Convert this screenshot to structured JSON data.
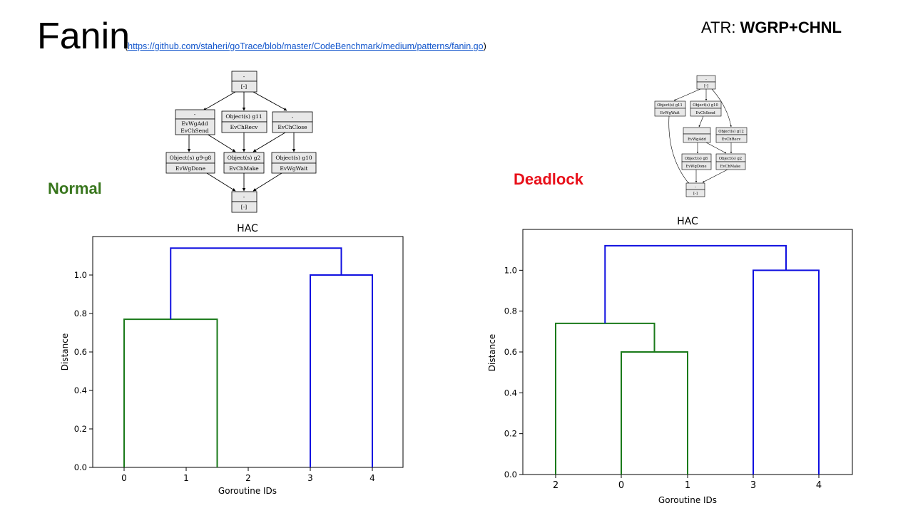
{
  "header": {
    "title": "Fanin",
    "link_open": "(",
    "link_text": "https://github.com/staheri/goTrace/blob/master/CodeBenchmark/medium/patterns/fanin.go",
    "link_close": ")",
    "atr_prefix": "ATR: ",
    "atr_value": "WGRP+CHNL"
  },
  "labels": {
    "normal": "Normal",
    "deadlock": "Deadlock"
  },
  "graph_normal": {
    "nodes": [
      {
        "id": "top",
        "l1": "-",
        "l2": "[-]"
      },
      {
        "id": "a",
        "l1": "-",
        "l2": "EvWgAdd",
        "l3": "EvChSend"
      },
      {
        "id": "b",
        "l1": "Object(s) g11",
        "l2": "EvChRecv"
      },
      {
        "id": "c",
        "l1": "-",
        "l2": "EvChClose"
      },
      {
        "id": "d",
        "l1": "Object(s) g9-g8",
        "l2": "EvWgDone"
      },
      {
        "id": "e",
        "l1": "Object(s) g2",
        "l2": "EvChMake"
      },
      {
        "id": "f",
        "l1": "Object(s) g10",
        "l2": "EvWgWait"
      },
      {
        "id": "bot",
        "l1": "-",
        "l2": "[-]"
      }
    ]
  },
  "graph_deadlock": {
    "nodes": [
      {
        "id": "top",
        "l1": "-",
        "l2": "[-]"
      },
      {
        "id": "a",
        "l1": "Object(s) g11",
        "l2": "EvWgWait"
      },
      {
        "id": "b",
        "l1": "Object(s) g10",
        "l2": "EvChSend"
      },
      {
        "id": "c",
        "l1": "EvWgAdd"
      },
      {
        "id": "d",
        "l1": "Object(s) g12",
        "l2": "EvChRecv"
      },
      {
        "id": "e",
        "l1": "Object(s) g8",
        "l2": "EvWgDone"
      },
      {
        "id": "f",
        "l1": "Object(s) g2",
        "l2": "EvChMake"
      },
      {
        "id": "bot",
        "l1": "-",
        "l2": "[-]"
      }
    ]
  },
  "chart_data": [
    {
      "type": "dendrogram",
      "title": "HAC",
      "xlabel": "Goroutine IDs",
      "ylabel": "Distance",
      "leaves": [
        "0",
        "1",
        "2",
        "3",
        "4"
      ],
      "yticks": [
        "0.0",
        "0.2",
        "0.4",
        "0.6",
        "0.8",
        "1.0"
      ],
      "ylim": [
        0,
        1.2
      ],
      "links": [
        {
          "left": "0",
          "right": "1 2",
          "height": 0.77,
          "color": "#1a7a1a"
        },
        {
          "left": "3",
          "right": "4",
          "height": 1.0,
          "color": "#1010e0"
        },
        {
          "left": "0 1 2",
          "right": "3 4",
          "height": 1.14,
          "color": "#1010e0"
        }
      ],
      "colors": {
        "cluster1": "#1a7a1a",
        "cluster2": "#1010e0"
      }
    },
    {
      "type": "dendrogram",
      "title": "HAC",
      "xlabel": "Goroutine IDs",
      "ylabel": "Distance",
      "leaves": [
        "2",
        "0",
        "1",
        "3",
        "4"
      ],
      "yticks": [
        "0.0",
        "0.2",
        "0.4",
        "0.6",
        "0.8",
        "1.0"
      ],
      "ylim": [
        0,
        1.2
      ],
      "links": [
        {
          "left": "0",
          "right": "1",
          "height": 0.6,
          "color": "#1a7a1a"
        },
        {
          "left": "2",
          "right": "0 1",
          "height": 0.74,
          "color": "#1a7a1a"
        },
        {
          "left": "3",
          "right": "4",
          "height": 1.0,
          "color": "#1010e0"
        },
        {
          "left": "2 0 1",
          "right": "3 4",
          "height": 1.12,
          "color": "#1010e0"
        }
      ],
      "colors": {
        "cluster1": "#1a7a1a",
        "cluster2": "#1010e0"
      }
    }
  ]
}
